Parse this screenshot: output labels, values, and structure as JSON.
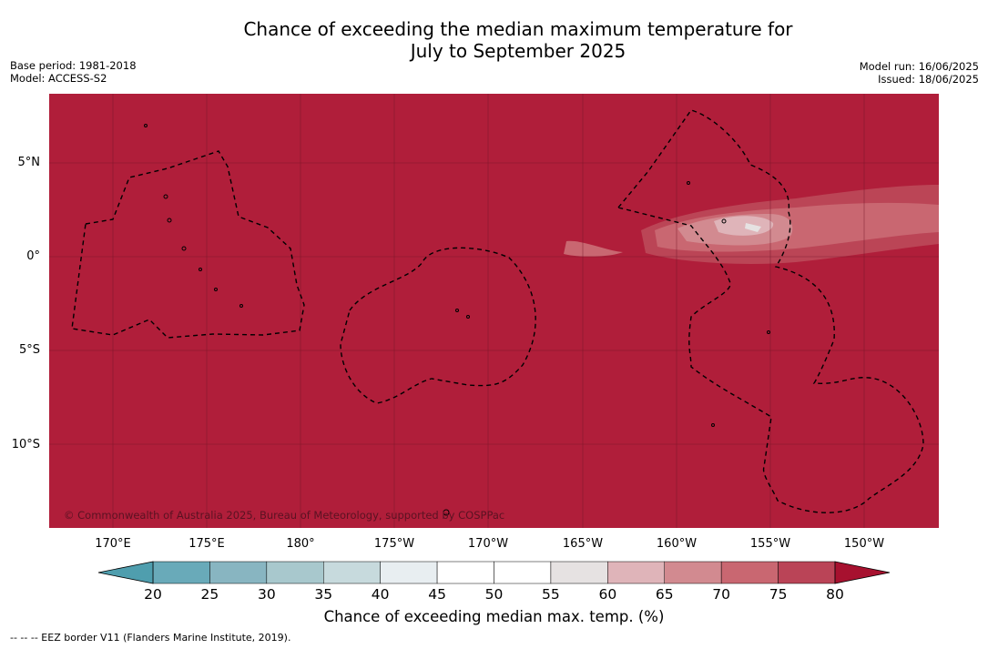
{
  "title_line1": "Chance of exceeding the median maximum temperature for",
  "title_line2": "July to September 2025",
  "meta": {
    "base_period": "Base period: 1981-2018",
    "model": "Model: ACCESS-S2",
    "model_run": "Model run: 16/06/2025",
    "issued": "Issued: 18/06/2025"
  },
  "map": {
    "latitudes": [
      "5°N",
      "0°",
      "5°S",
      "10°S"
    ],
    "longitudes": [
      "170°E",
      "175°E",
      "180°",
      "175°W",
      "170°W",
      "165°W",
      "160°W",
      "155°W",
      "150°W"
    ],
    "copyright": "© Commonwealth of Australia 2025, Bureau of Meteorology, supported by COSPPac",
    "dominant_colour": "#b01e3a"
  },
  "colorbar": {
    "ticks": [
      "20",
      "25",
      "30",
      "35",
      "40",
      "45",
      "50",
      "55",
      "60",
      "65",
      "70",
      "75",
      "80"
    ],
    "colours": [
      "#69aab9",
      "#88b5c1",
      "#a8c8cd",
      "#c7dadd",
      "#e8eef1",
      "#ffffff",
      "#ffffff",
      "#e6e2e2",
      "#dfb4b9",
      "#d28a90",
      "#c96771",
      "#ba4457"
    ],
    "low_extend_colour": "#4f9eae",
    "high_extend_colour": "#a7112f",
    "label": "Chance of exceeding median max. temp. (%)"
  },
  "legend_note": "--  --  -- EEZ border V11 (Flanders Marine Institute, 2019)."
}
